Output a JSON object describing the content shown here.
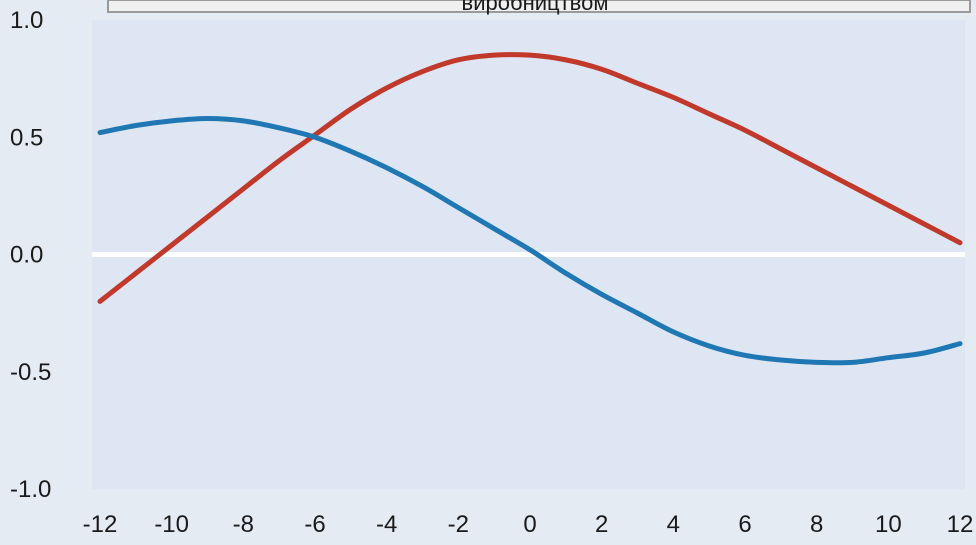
{
  "chart_data": {
    "type": "line",
    "title": "виробництвом",
    "xlabel": "",
    "ylabel": "",
    "x": [
      -12,
      -11,
      -10,
      -9,
      -8,
      -7,
      -6,
      -5,
      -4,
      -3,
      -2,
      -1,
      0,
      1,
      2,
      3,
      4,
      5,
      6,
      7,
      8,
      9,
      10,
      11,
      12
    ],
    "series": [
      {
        "color": "#c0392b",
        "values": [
          -0.2,
          -0.08,
          0.04,
          0.16,
          0.28,
          0.4,
          0.51,
          0.62,
          0.71,
          0.78,
          0.83,
          0.85,
          0.85,
          0.83,
          0.79,
          0.73,
          0.67,
          0.6,
          0.53,
          0.45,
          0.37,
          0.29,
          0.21,
          0.13,
          0.05
        ]
      },
      {
        "color": "#1f77b4",
        "values": [
          0.52,
          0.55,
          0.57,
          0.58,
          0.57,
          0.54,
          0.5,
          0.44,
          0.37,
          0.29,
          0.2,
          0.11,
          0.02,
          -0.08,
          -0.17,
          -0.25,
          -0.33,
          -0.39,
          -0.43,
          -0.45,
          -0.46,
          -0.46,
          -0.44,
          -0.42,
          -0.38
        ]
      }
    ],
    "xlim": [
      -12,
      12
    ],
    "ylim": [
      -1.0,
      1.0
    ],
    "xticks": [
      "-12",
      "-10",
      "-8",
      "-6",
      "-4",
      "-2",
      "0",
      "2",
      "4",
      "6",
      "8",
      "10",
      "12"
    ],
    "yticks": [
      "1.0",
      "0.5",
      "0.0",
      "-0.5",
      "-1.0"
    ],
    "colors": {
      "page_background": "#e4ebf3",
      "plot_background": "#dfe6f3",
      "zero_line": "#ffffff",
      "title_bar_border": "#9a9a9a"
    },
    "grid": false,
    "legend": "none"
  }
}
